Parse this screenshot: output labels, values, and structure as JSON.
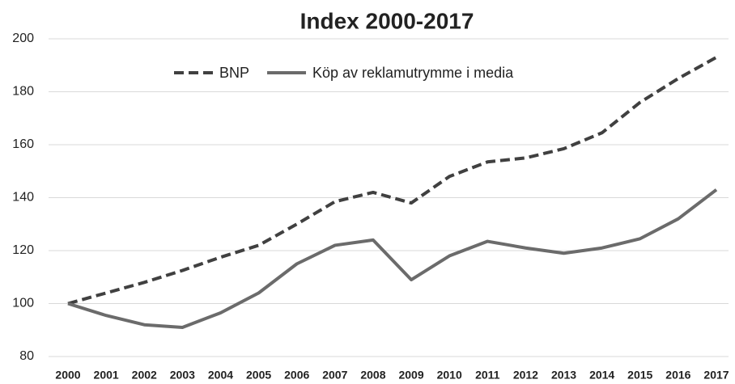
{
  "chart_data": {
    "type": "line",
    "title": "Index 2000-2017",
    "categories": [
      "2000",
      "2001",
      "2002",
      "2003",
      "2004",
      "2005",
      "2006",
      "2007",
      "2008",
      "2009",
      "2010",
      "2011",
      "2012",
      "2013",
      "2014",
      "2015",
      "2016",
      "2017"
    ],
    "series": [
      {
        "name": "BNP",
        "color": "#404040",
        "dash": true,
        "values": [
          100,
          104,
          108,
          112.5,
          117.5,
          122,
          130,
          138.5,
          142,
          138,
          148,
          153.5,
          155,
          158.5,
          164.5,
          176,
          185,
          193
        ]
      },
      {
        "name": "Köp av reklamutrymme i media",
        "color": "#6b6b6b",
        "dash": false,
        "values": [
          100,
          95.5,
          92,
          91,
          96.5,
          104,
          115,
          122,
          124,
          109,
          118,
          123.5,
          121,
          119,
          121,
          124.5,
          132,
          143
        ]
      }
    ],
    "ylim": [
      80,
      200
    ],
    "yticks": [
      80,
      100,
      120,
      140,
      160,
      180,
      200
    ],
    "grid": true,
    "legend": "top"
  }
}
